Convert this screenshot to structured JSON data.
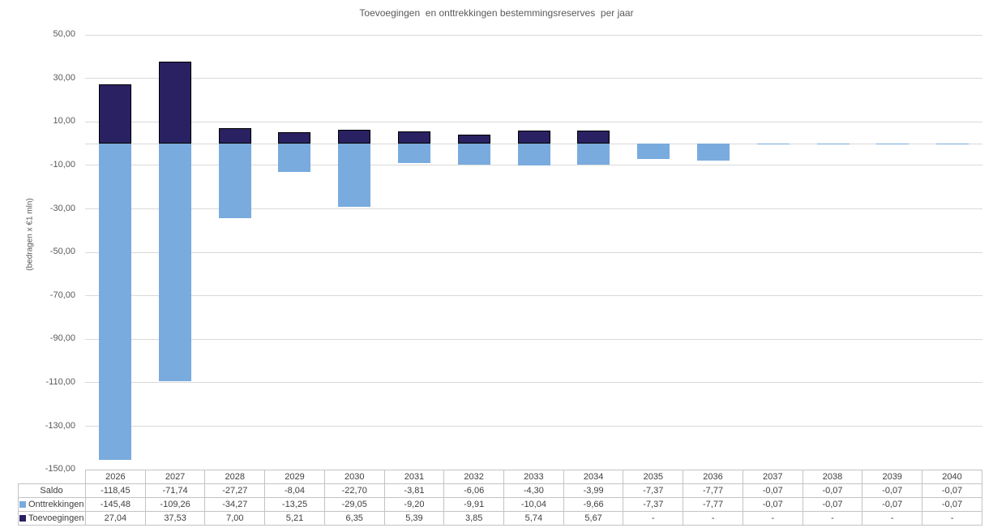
{
  "chart_data": {
    "type": "bar",
    "title": "Toevoegingen  en onttrekkingen bestemmingsreserves  per jaar",
    "ylabel": "(bedragen x €1 mln)",
    "ylim": [
      -150,
      50
    ],
    "yticks": [
      50,
      30,
      10,
      -10,
      -30,
      -50,
      -70,
      -90,
      -110,
      -130,
      -150
    ],
    "grid": true,
    "zero_line": true,
    "legend_position": "data-table-row-headers",
    "number_format": "two decimals, comma as decimal separator, '-' for empty",
    "categories": [
      "2026",
      "2027",
      "2028",
      "2029",
      "2030",
      "2031",
      "2032",
      "2033",
      "2034",
      "2035",
      "2036",
      "2037",
      "2038",
      "2039",
      "2040"
    ],
    "series": [
      {
        "name": "Saldo",
        "in_chart": false,
        "color": null,
        "border": null,
        "values": [
          -118.45,
          -71.74,
          -27.27,
          -8.04,
          -22.7,
          -3.81,
          -6.06,
          -4.3,
          -3.99,
          -7.37,
          -7.77,
          -0.07,
          -0.07,
          -0.07,
          -0.07
        ]
      },
      {
        "name": "Onttrekkingen",
        "in_chart": true,
        "color": "#79abde",
        "border": null,
        "values": [
          -145.48,
          -109.26,
          -34.27,
          -13.25,
          -29.05,
          -9.2,
          -9.91,
          -10.04,
          -9.66,
          -7.37,
          -7.77,
          -0.07,
          -0.07,
          -0.07,
          -0.07
        ]
      },
      {
        "name": "Toevoegingen",
        "in_chart": true,
        "color": "#292161",
        "border": "#000000",
        "values": [
          27.04,
          37.53,
          7.0,
          5.21,
          6.35,
          5.39,
          3.85,
          5.74,
          5.67,
          null,
          null,
          null,
          null,
          null,
          null
        ]
      }
    ]
  },
  "colors": {
    "grid": "#d9d9d9",
    "axis_text": "#595959",
    "table_text": "#404040",
    "table_border": "#c3c3c3",
    "background": "#ffffff"
  }
}
